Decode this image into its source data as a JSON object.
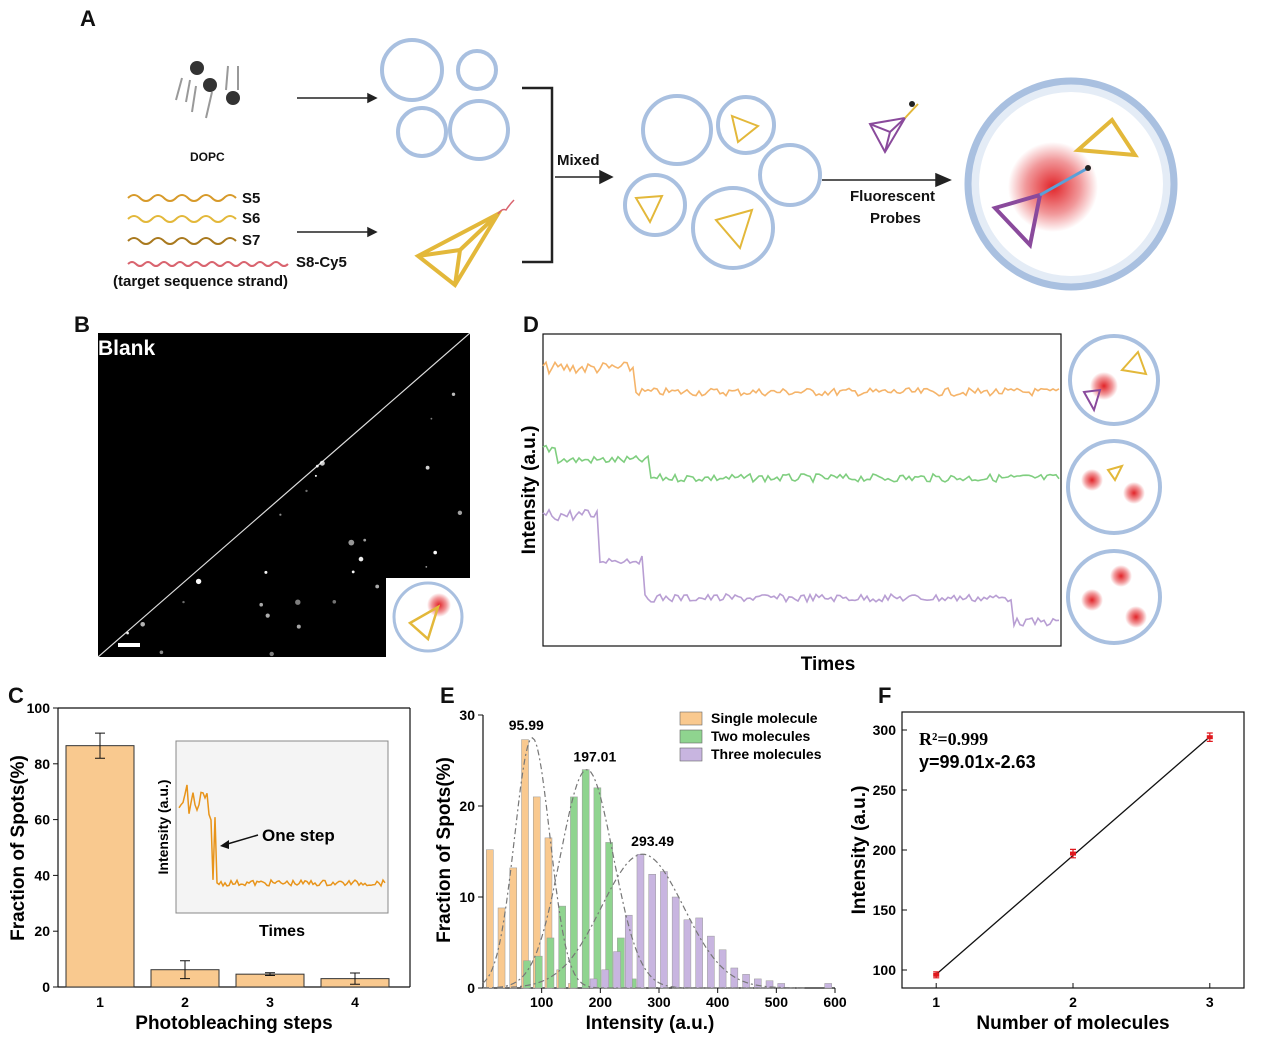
{
  "panels": {
    "a": "A",
    "b": "B",
    "c": "C",
    "d": "D",
    "e": "E",
    "f": "F"
  },
  "panel_a": {
    "dopc_label": "DOPC",
    "strands": [
      "S5",
      "S6",
      "S7",
      "S8-Cy5"
    ],
    "target_label": "(target sequence strand)",
    "mixed_label": "Mixed",
    "probe_label_line1": "Fluorescent",
    "probe_label_line2": "Probes",
    "colors": {
      "s5": "#d79a2a",
      "s6": "#e3b83a",
      "s7": "#a9791e",
      "s8": "#d9646f",
      "vesicle": "#a9c0e0",
      "fluor": "#e0191e",
      "probe": "#8a4a9c"
    }
  },
  "panel_b": {
    "label": "Blank"
  },
  "panel_d": {
    "ylabel": "Intensity (a.u.)",
    "xlabel": "Times",
    "traces": [
      {
        "color": "#f5b46a",
        "levels": [
          1
        ]
      },
      {
        "color": "#7fce7f",
        "levels": [
          2
        ]
      },
      {
        "color": "#b89ed3",
        "levels": [
          3
        ]
      }
    ]
  },
  "chart_data": [
    {
      "type": "bar",
      "panel": "C",
      "categories": [
        "1",
        "2",
        "3",
        "4"
      ],
      "values": [
        86.5,
        6.2,
        4.6,
        3.0
      ],
      "errors": [
        4.5,
        3.2,
        0.5,
        2.0
      ],
      "xlabel": "Photobleaching steps",
      "ylabel": "Fraction of Spots(%)",
      "ylim": [
        0,
        100
      ],
      "yticks": [
        "0",
        "20",
        "40",
        "60",
        "80",
        "100"
      ],
      "bar_color": "#f9c98f",
      "inset": {
        "ylabel": "Intensity (a.u.)",
        "xlabel": "Times",
        "annotation": "One step",
        "trace_color": "#e8941a"
      }
    },
    {
      "type": "bar",
      "panel": "E",
      "xlabel": "Intensity (a.u.)",
      "ylabel": "Fraction of Spots(%)",
      "xlim": [
        0,
        600
      ],
      "ylim": [
        0,
        30
      ],
      "xticks": [
        "100",
        "200",
        "300",
        "400",
        "500",
        "600"
      ],
      "yticks": [
        "0",
        "10",
        "20",
        "30"
      ],
      "series": [
        {
          "name": "Single molecule",
          "color": "#f9c98f",
          "peak_label": "95.99",
          "mean": 84,
          "sd": 30,
          "peak": 27.5,
          "x": [
            15,
            35,
            55,
            75,
            95,
            115,
            135,
            155
          ],
          "values": [
            15.2,
            8.8,
            13.2,
            27.3,
            21.0,
            16.5,
            2.0,
            0.5
          ]
        },
        {
          "name": "Two molecules",
          "color": "#8fd48f",
          "peak_label": "197.01",
          "mean": 177,
          "sd": 45,
          "peak": 24.0,
          "x": [
            75,
            95,
            115,
            135,
            155,
            175,
            195,
            215,
            235,
            255
          ],
          "values": [
            3.0,
            3.5,
            5.5,
            9.0,
            21.0,
            24.0,
            22.0,
            16.0,
            5.5,
            1.0
          ]
        },
        {
          "name": "Three molecules",
          "color": "#c8b5e0",
          "peak_label": "293.49",
          "mean": 272,
          "sd": 70,
          "peak": 14.7,
          "x": [
            185,
            205,
            225,
            245,
            265,
            285,
            305,
            325,
            345,
            365,
            385,
            405,
            425,
            445,
            465,
            485,
            505,
            585
          ],
          "values": [
            1.0,
            2.0,
            4.0,
            8.0,
            14.7,
            12.5,
            12.8,
            10.0,
            7.5,
            7.7,
            5.7,
            4.2,
            2.2,
            1.5,
            1.0,
            0.8,
            0.5,
            0.5
          ]
        }
      ]
    },
    {
      "type": "line",
      "panel": "F",
      "x": [
        1,
        2,
        3
      ],
      "y": [
        96,
        197,
        294
      ],
      "errors": [
        2.5,
        3.5,
        3.5
      ],
      "xlabel": "Number of molecules",
      "ylabel": "Intensity (a.u.)",
      "xlim": [
        0.75,
        3.25
      ],
      "ylim": [
        85,
        315
      ],
      "xticks": [
        "1",
        "2",
        "3"
      ],
      "yticks": [
        "100",
        "150",
        "200",
        "250",
        "300"
      ],
      "annotation_r2": "R²=0.999",
      "annotation_eq": "y=99.01x-2.63",
      "point_color": "#e0191e"
    }
  ]
}
